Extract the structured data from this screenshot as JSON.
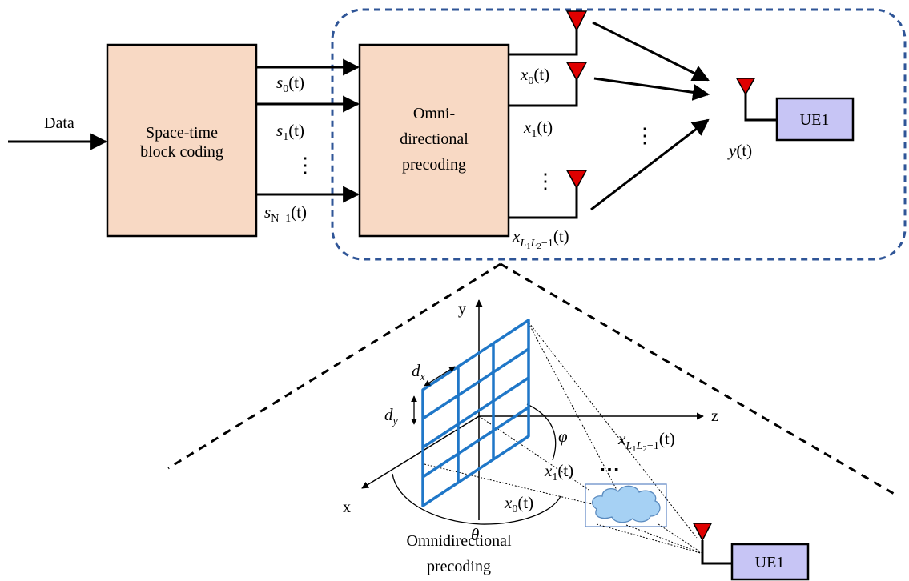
{
  "inputs": {
    "data_label": "Data"
  },
  "blocks": {
    "stbc": {
      "line1": "Space-time",
      "line2": "block coding"
    },
    "precoder": {
      "line1": "Omni-",
      "line2": "directional",
      "line3": "precoding"
    },
    "ue_top": "UE1",
    "ue_bottom": "UE1"
  },
  "signals": {
    "s0": {
      "base": "s",
      "sub": "0",
      "arg": "(t)"
    },
    "s1": {
      "base": "s",
      "sub": "1",
      "arg": "(t)"
    },
    "sN": {
      "base": "s",
      "sub": "N−1",
      "arg": "(t)"
    },
    "x0": {
      "base": "x",
      "sub": "0",
      "arg": "(t)"
    },
    "x1": {
      "base": "x",
      "sub": "1",
      "arg": "(t)"
    },
    "xL": {
      "base": "x",
      "sub": "L",
      "sub1": "1",
      "mid": "L",
      "sub2": "2",
      "tail": "−1",
      "arg": "(t)"
    },
    "y": {
      "base": "y",
      "arg": "(t)"
    },
    "vdots": "⋮"
  },
  "geometry_labels": {
    "axis_y": "y",
    "axis_z": "z",
    "axis_x": "x",
    "dx": {
      "base": "d",
      "sub": "x"
    },
    "dy": {
      "base": "d",
      "sub": "y"
    },
    "phi": "φ",
    "theta": "θ",
    "x0": {
      "base": "x",
      "sub": "0",
      "arg": "(t)"
    },
    "x1": {
      "base": "x",
      "sub": "1",
      "arg": "(t)"
    },
    "xL": {
      "base": "x",
      "sub": "L",
      "sub1": "1",
      "mid": "L",
      "sub2": "2",
      "tail": "−1",
      "arg": "(t)"
    },
    "dots": "⋯"
  },
  "caption": {
    "line1": "Omnidirectional",
    "line2": "precoding"
  },
  "colors": {
    "block_fill": "#F8D9C4",
    "ue_fill": "#C7C5F5",
    "dashed_region": "#2F5597",
    "array_blue": "#1F77C8",
    "antenna_red": "#E00000",
    "cloud_fill": "#A6D1F4"
  }
}
